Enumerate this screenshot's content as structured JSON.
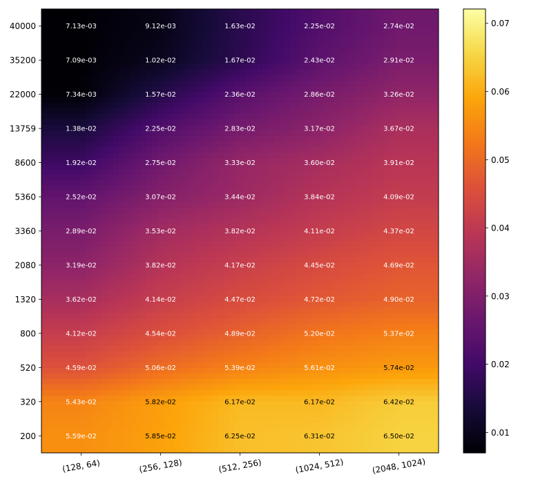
{
  "chart_data": {
    "type": "heatmap",
    "colormap": "inferno",
    "smoothed": true,
    "x_categories": [
      "(128, 64)",
      "(256, 128)",
      "(512, 256)",
      "(1024, 512)",
      "(2048, 1024)"
    ],
    "y_categories": [
      "40000",
      "35200",
      "22000",
      "13759",
      "8600",
      "5360",
      "3360",
      "2080",
      "1320",
      "800",
      "520",
      "320",
      "200"
    ],
    "values": [
      [
        0.00713,
        0.00912,
        0.0163,
        0.0225,
        0.0274
      ],
      [
        0.00709,
        0.0102,
        0.0167,
        0.0243,
        0.0291
      ],
      [
        0.00734,
        0.0157,
        0.0236,
        0.0286,
        0.0326
      ],
      [
        0.0138,
        0.0225,
        0.0283,
        0.0317,
        0.0367
      ],
      [
        0.0192,
        0.0275,
        0.0333,
        0.036,
        0.0391
      ],
      [
        0.0252,
        0.0307,
        0.0344,
        0.0384,
        0.0409
      ],
      [
        0.0289,
        0.0353,
        0.0382,
        0.0411,
        0.0437
      ],
      [
        0.0319,
        0.0382,
        0.0417,
        0.0445,
        0.0469
      ],
      [
        0.0362,
        0.0414,
        0.0447,
        0.0472,
        0.049
      ],
      [
        0.0412,
        0.0454,
        0.0489,
        0.052,
        0.0537
      ],
      [
        0.0459,
        0.0506,
        0.0539,
        0.0561,
        0.0574
      ],
      [
        0.0543,
        0.0582,
        0.0617,
        0.0617,
        0.0642
      ],
      [
        0.0559,
        0.0585,
        0.0625,
        0.0631,
        0.065
      ]
    ],
    "labels": [
      [
        "7.13e-03",
        "9.12e-03",
        "1.63e-02",
        "2.25e-02",
        "2.74e-02"
      ],
      [
        "7.09e-03",
        "1.02e-02",
        "1.67e-02",
        "2.43e-02",
        "2.91e-02"
      ],
      [
        "7.34e-03",
        "1.57e-02",
        "2.36e-02",
        "2.86e-02",
        "3.26e-02"
      ],
      [
        "1.38e-02",
        "2.25e-02",
        "2.83e-02",
        "3.17e-02",
        "3.67e-02"
      ],
      [
        "1.92e-02",
        "2.75e-02",
        "3.33e-02",
        "3.60e-02",
        "3.91e-02"
      ],
      [
        "2.52e-02",
        "3.07e-02",
        "3.44e-02",
        "3.84e-02",
        "4.09e-02"
      ],
      [
        "2.89e-02",
        "3.53e-02",
        "3.82e-02",
        "4.11e-02",
        "4.37e-02"
      ],
      [
        "3.19e-02",
        "3.82e-02",
        "4.17e-02",
        "4.45e-02",
        "4.69e-02"
      ],
      [
        "3.62e-02",
        "4.14e-02",
        "4.47e-02",
        "4.72e-02",
        "4.90e-02"
      ],
      [
        "4.12e-02",
        "4.54e-02",
        "4.89e-02",
        "5.20e-02",
        "5.37e-02"
      ],
      [
        "4.59e-02",
        "5.06e-02",
        "5.39e-02",
        "5.61e-02",
        "5.74e-02"
      ],
      [
        "5.43e-02",
        "5.82e-02",
        "6.17e-02",
        "6.17e-02",
        "6.42e-02"
      ],
      [
        "5.59e-02",
        "5.85e-02",
        "6.25e-02",
        "6.31e-02",
        "6.50e-02"
      ]
    ],
    "label_colors": [
      [
        "white",
        "white",
        "white",
        "white",
        "white"
      ],
      [
        "white",
        "white",
        "white",
        "white",
        "white"
      ],
      [
        "white",
        "white",
        "white",
        "white",
        "white"
      ],
      [
        "white",
        "white",
        "white",
        "white",
        "white"
      ],
      [
        "white",
        "white",
        "white",
        "white",
        "white"
      ],
      [
        "white",
        "white",
        "white",
        "white",
        "white"
      ],
      [
        "white",
        "white",
        "white",
        "white",
        "white"
      ],
      [
        "white",
        "white",
        "white",
        "white",
        "white"
      ],
      [
        "white",
        "white",
        "white",
        "white",
        "white"
      ],
      [
        "white",
        "white",
        "white",
        "white",
        "white"
      ],
      [
        "white",
        "white",
        "white",
        "white",
        "black"
      ],
      [
        "white",
        "black",
        "black",
        "black",
        "black"
      ],
      [
        "white",
        "black",
        "black",
        "black",
        "black"
      ]
    ],
    "colorbar": {
      "range": [
        0.007,
        0.0721
      ],
      "ticks": [
        0.01,
        0.02,
        0.03,
        0.04,
        0.05,
        0.06,
        0.07
      ],
      "tick_labels": [
        "0.01",
        "0.02",
        "0.03",
        "0.04",
        "0.05",
        "0.06",
        "0.07"
      ]
    },
    "title": "",
    "xlabel": "",
    "ylabel": ""
  }
}
